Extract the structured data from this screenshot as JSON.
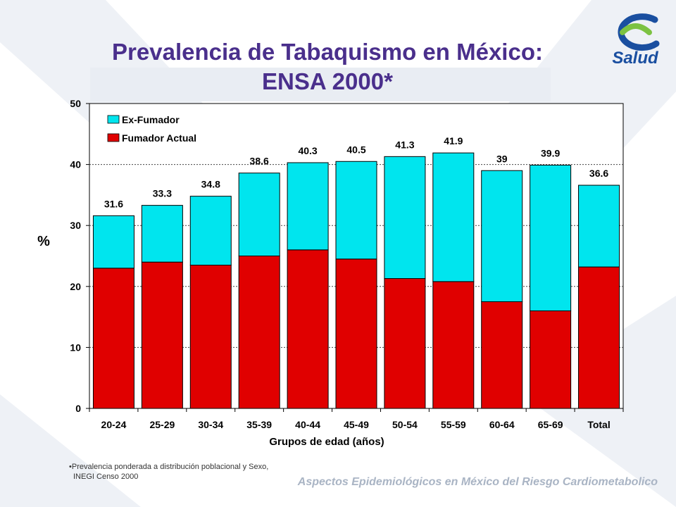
{
  "slide": {
    "title_line1": "Prevalencia de Tabaquismo en México:",
    "title_line2": "ENSA 2000*",
    "footnote_line1": "•Prevalencia ponderada a distribución poblacional y Sexo,",
    "footnote_line2": "INEGI Censo 2000",
    "footer": "Aspectos Epidemiológicos en México del Riesgo Cardiometabolico",
    "logo_text": "Salud"
  },
  "colors": {
    "ex_fumador": "#00e5ee",
    "fumador_actual": "#e00000",
    "title": "#4a2f8c",
    "logo_blue": "#1a4fa0",
    "logo_green": "#7cc242"
  },
  "chart_data": {
    "type": "bar",
    "stacked": true,
    "categories": [
      "20-24",
      "25-29",
      "30-34",
      "35-39",
      "40-44",
      "45-49",
      "50-54",
      "55-59",
      "60-64",
      "65-69",
      "Total"
    ],
    "series": [
      {
        "name": "Fumador Actual",
        "values": [
          23.0,
          24.0,
          23.5,
          25.0,
          26.0,
          24.5,
          21.3,
          20.8,
          17.5,
          16.0,
          23.2
        ]
      },
      {
        "name": "Ex-Fumador",
        "values": [
          8.6,
          9.3,
          11.3,
          13.6,
          14.3,
          16.0,
          20.0,
          21.1,
          21.5,
          23.9,
          13.4
        ]
      }
    ],
    "totals_labels": [
      "31.6",
      "33.3",
      "34.8",
      "38.6",
      "40.3",
      "40.5",
      "41.3",
      "41.9",
      "39",
      "39.9",
      "36.6"
    ],
    "totals": [
      31.6,
      33.3,
      34.8,
      38.6,
      40.3,
      40.5,
      41.3,
      41.9,
      39.0,
      39.9,
      36.6
    ],
    "ylabel": "%",
    "xlabel": "Grupos de edad (años)",
    "ylim": [
      0,
      50
    ],
    "yticks": [
      0,
      10,
      20,
      30,
      40,
      50
    ],
    "grid": true,
    "legend": "top-left",
    "legend_order": [
      "Ex-Fumador",
      "Fumador Actual"
    ]
  }
}
